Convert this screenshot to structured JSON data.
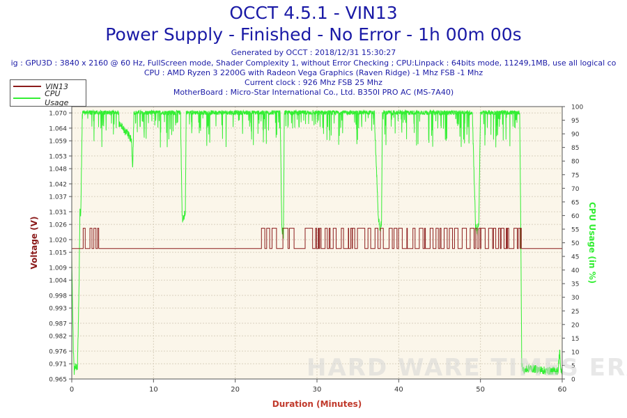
{
  "header": {
    "title": "OCCT 4.5.1 - VIN13",
    "subtitle": "Power Supply - Finished - No Error - 1h 00m 00s",
    "lines": [
      "Generated by OCCT : 2018/12/31 15:30:27",
      "ig : GPU3D : 3840 x 2160 @ 60 Hz, FullScreen mode, Shader Complexity 1, without Error Checking ; CPU:Linpack : 64bits mode, 11249,1MB, use all logical co",
      "CPU : AMD Ryzen 3 2200G with Radeon Vega Graphics (Raven Ridge) -1 Mhz FSB -1 Mhz",
      "Current clock : 926 Mhz FSB 25 Mhz",
      "MotherBoard : Micro-Star International Co., Ltd. B350I PRO AC (MS-7A40)"
    ]
  },
  "watermark": "HARD WARE TIMES ERA",
  "colors": {
    "voltage": "#8b1a1a",
    "cpu": "#33ee33",
    "title": "#1a1aa6",
    "plot_bg": "#fbf6ea",
    "xlabel": "#c0392b"
  },
  "chart_data": {
    "type": "line",
    "xlabel": "Duration (Minutes)",
    "ylabel_left": "Voltage (V)",
    "ylabel_right": "CPU Usage (in %)",
    "xlim": [
      0,
      60
    ],
    "xticks": [
      0,
      10,
      20,
      30,
      40,
      50,
      60
    ],
    "ylim_left": [
      0.965,
      1.0725
    ],
    "yticks_left": [
      "0.965",
      "0.971",
      "0.976",
      "0.982",
      "0.987",
      "0.993",
      "0.998",
      "1.004",
      "1.009",
      "1.015",
      "1.020",
      "1.026",
      "1.031",
      "1.037",
      "1.042",
      "1.048",
      "1.053",
      "1.059",
      "1.064",
      "1.070"
    ],
    "ylim_right": [
      0,
      100
    ],
    "yticks_right": [
      "0",
      "5",
      "10",
      "15",
      "20",
      "25",
      "30",
      "35",
      "40",
      "45",
      "50",
      "55",
      "60",
      "65",
      "70",
      "75",
      "80",
      "85",
      "90",
      "95",
      "100"
    ],
    "legend": "top-left",
    "grid": true,
    "series": [
      {
        "name": "VIN13",
        "axis": "left",
        "baseline": 1.0165,
        "peak": 1.0245,
        "segments": [
          {
            "x": [
              0,
              1.3
            ],
            "level": "baseline"
          },
          {
            "x": [
              1.3,
              3.3
            ],
            "level": "toggling"
          },
          {
            "x": [
              3.3,
              22.8
            ],
            "level": "baseline"
          },
          {
            "x": [
              22.8,
              55.0
            ],
            "level": "toggling"
          },
          {
            "x": [
              55.0,
              60
            ],
            "level": "baseline"
          }
        ]
      },
      {
        "name": "CPU Usage",
        "axis": "right",
        "x": [
          0,
          0.2,
          0.3,
          0.5,
          0.7,
          0.9,
          1.0,
          1.1,
          1.3,
          5.0,
          7.3,
          7.45,
          7.6,
          10.0,
          13.3,
          13.5,
          13.6,
          13.9,
          14.0,
          25.5,
          25.7,
          25.9,
          26.0,
          37.0,
          37.5,
          37.7,
          37.9,
          38.0,
          49.0,
          49.4,
          49.6,
          49.8,
          50.0,
          54.8,
          54.95,
          55.05,
          55.3,
          56.0,
          58.0,
          59.5,
          59.7,
          59.8,
          60
        ],
        "values": [
          45,
          10,
          3,
          5,
          4,
          35,
          62,
          60,
          98,
          97,
          88,
          78,
          96,
          97,
          98,
          60,
          58,
          62,
          98,
          97,
          55,
          53,
          97,
          98,
          60,
          54,
          58,
          98,
          98,
          56,
          54,
          58,
          98,
          98,
          48,
          5,
          3,
          4,
          3,
          3,
          11,
          3,
          3
        ]
      }
    ]
  }
}
